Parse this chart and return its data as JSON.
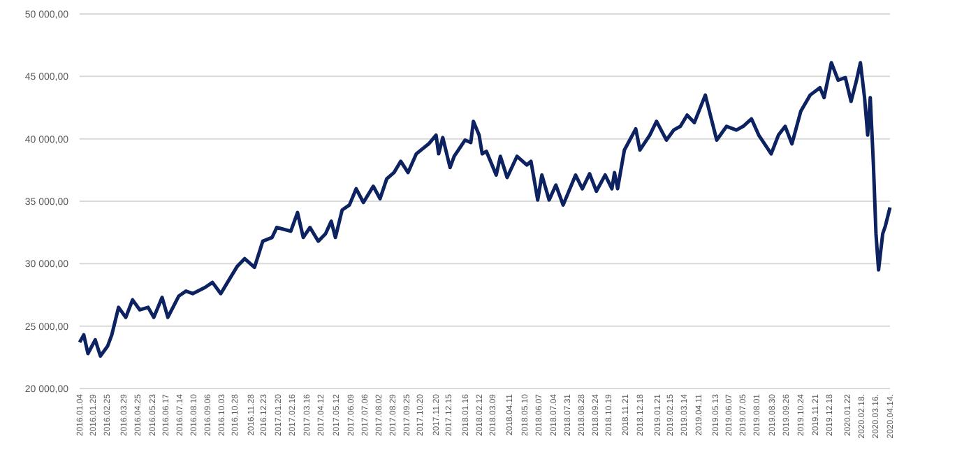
{
  "chart_data": {
    "type": "line",
    "grid": "y",
    "xlim": [
      "2016-01-04",
      "2020-04-14"
    ],
    "ylim": [
      20000,
      50000
    ],
    "yticks": [
      {
        "value": 20000,
        "label": "20 000,00"
      },
      {
        "value": 25000,
        "label": "25 000,00"
      },
      {
        "value": 30000,
        "label": "30 000,00"
      },
      {
        "value": 35000,
        "label": "35 000,00"
      },
      {
        "value": 40000,
        "label": "40 000,00"
      },
      {
        "value": 45000,
        "label": "45 000,00"
      },
      {
        "value": 50000,
        "label": "50 000,00"
      }
    ],
    "xticks": [
      {
        "value": "2016-01-04",
        "label": "2016.01.04"
      },
      {
        "value": "2016-01-29",
        "label": "2016.01.29"
      },
      {
        "value": "2016-02-25",
        "label": "2016.02.25"
      },
      {
        "value": "2016-03-29",
        "label": "2016.03.29"
      },
      {
        "value": "2016-04-25",
        "label": "2016.04.25"
      },
      {
        "value": "2016-05-23",
        "label": "2016.05.23"
      },
      {
        "value": "2016-06-17",
        "label": "2016.06.17"
      },
      {
        "value": "2016-07-14",
        "label": "2016.07.14"
      },
      {
        "value": "2016-08-10",
        "label": "2016.08.10"
      },
      {
        "value": "2016-09-06",
        "label": "2016.09.06"
      },
      {
        "value": "2016-10-03",
        "label": "2016.10.03"
      },
      {
        "value": "2016-10-28",
        "label": "2016.10.28"
      },
      {
        "value": "2016-11-28",
        "label": "2016.11.28"
      },
      {
        "value": "2016-12-23",
        "label": "2016.12.23"
      },
      {
        "value": "2017-01-20",
        "label": "2017.01.20"
      },
      {
        "value": "2017-02-16",
        "label": "2017.02.16"
      },
      {
        "value": "2017-03-16",
        "label": "2017.03.16"
      },
      {
        "value": "2017-04-12",
        "label": "2017.04.12"
      },
      {
        "value": "2017-05-12",
        "label": "2017.05.12"
      },
      {
        "value": "2017-06-09",
        "label": "2017.06.09"
      },
      {
        "value": "2017-07-06",
        "label": "2017.07.06"
      },
      {
        "value": "2017-08-02",
        "label": "2017.08.02"
      },
      {
        "value": "2017-08-29",
        "label": "2017.08.29"
      },
      {
        "value": "2017-09-25",
        "label": "2017.09.25"
      },
      {
        "value": "2017-10-20",
        "label": "2017.10.20"
      },
      {
        "value": "2017-11-20",
        "label": "2017.11.20"
      },
      {
        "value": "2017-12-15",
        "label": "2017.12.15"
      },
      {
        "value": "2018-01-16",
        "label": "2018.01.16"
      },
      {
        "value": "2018-02-12",
        "label": "2018.02.12"
      },
      {
        "value": "2018-03-09",
        "label": "2018.03.09"
      },
      {
        "value": "2018-04-11",
        "label": "2018.04.11"
      },
      {
        "value": "2018-05-10",
        "label": "2018.05.10"
      },
      {
        "value": "2018-06-07",
        "label": "2018.06.07"
      },
      {
        "value": "2018-07-04",
        "label": "2018.07.04"
      },
      {
        "value": "2018-07-31",
        "label": "2018.07.31"
      },
      {
        "value": "2018-08-28",
        "label": "2018.08.28"
      },
      {
        "value": "2018-09-24",
        "label": "2018.09.24"
      },
      {
        "value": "2018-10-19",
        "label": "2018.10.19"
      },
      {
        "value": "2018-11-21",
        "label": "2018.11.21"
      },
      {
        "value": "2018-12-18",
        "label": "2018.12.18"
      },
      {
        "value": "2019-01-21",
        "label": "2019.01.21"
      },
      {
        "value": "2019-02-15",
        "label": "2019.02.15"
      },
      {
        "value": "2019-03-14",
        "label": "2019.03.14"
      },
      {
        "value": "2019-04-11",
        "label": "2019.04.11"
      },
      {
        "value": "2019-05-13",
        "label": "2019.05.13"
      },
      {
        "value": "2019-06-07",
        "label": "2019.06.07"
      },
      {
        "value": "2019-07-05",
        "label": "2019.07.05"
      },
      {
        "value": "2019-08-01",
        "label": "2019.08.01"
      },
      {
        "value": "2019-08-30",
        "label": "2019.08.30"
      },
      {
        "value": "2019-09-26",
        "label": "2019.09.26"
      },
      {
        "value": "2019-10-24",
        "label": "2019.10.24"
      },
      {
        "value": "2019-11-21",
        "label": "2019.11.21"
      },
      {
        "value": "2019-12-18",
        "label": "2019.12.18"
      },
      {
        "value": "2020-01-22",
        "label": "2020.01.22"
      },
      {
        "value": "2020-02-18",
        "label": "2020.02.18."
      },
      {
        "value": "2020-03-16",
        "label": "2020.03.16."
      },
      {
        "value": "2020-04-14",
        "label": "2020.04.14."
      }
    ],
    "x": [
      "2016-01-04",
      "2016-01-12",
      "2016-01-20",
      "2016-02-03",
      "2016-02-13",
      "2016-02-27",
      "2016-03-06",
      "2016-03-19",
      "2016-04-02",
      "2016-04-15",
      "2016-04-29",
      "2016-05-15",
      "2016-05-26",
      "2016-06-11",
      "2016-06-22",
      "2016-07-13",
      "2016-07-27",
      "2016-08-09",
      "2016-09-02",
      "2016-09-16",
      "2016-10-02",
      "2016-10-15",
      "2016-11-03",
      "2016-11-17",
      "2016-12-06",
      "2016-12-22",
      "2017-01-09",
      "2017-01-18",
      "2017-02-14",
      "2017-02-27",
      "2017-03-10",
      "2017-03-23",
      "2017-04-08",
      "2017-04-22",
      "2017-05-03",
      "2017-05-11",
      "2017-05-24",
      "2017-06-07",
      "2017-06-20",
      "2017-07-04",
      "2017-07-23",
      "2017-08-05",
      "2017-08-18",
      "2017-09-01",
      "2017-09-14",
      "2017-09-28",
      "2017-10-14",
      "2017-11-07",
      "2017-11-21",
      "2017-11-26",
      "2017-12-04",
      "2017-12-18",
      "2017-12-26",
      "2018-01-16",
      "2018-01-27",
      "2018-02-01",
      "2018-02-12",
      "2018-02-18",
      "2018-02-26",
      "2018-03-17",
      "2018-03-25",
      "2018-04-07",
      "2018-04-26",
      "2018-05-15",
      "2018-05-23",
      "2018-06-05",
      "2018-06-13",
      "2018-06-27",
      "2018-07-10",
      "2018-07-24",
      "2018-08-17",
      "2018-08-30",
      "2018-09-13",
      "2018-09-26",
      "2018-10-13",
      "2018-10-26",
      "2018-10-31",
      "2018-11-06",
      "2018-11-19",
      "2018-12-11",
      "2018-12-19",
      "2019-01-07",
      "2019-01-20",
      "2019-02-08",
      "2019-02-22",
      "2019-03-07",
      "2019-03-20",
      "2019-04-03",
      "2019-04-24",
      "2019-05-16",
      "2019-06-04",
      "2019-06-23",
      "2019-07-06",
      "2019-07-22",
      "2019-08-05",
      "2019-08-29",
      "2019-09-12",
      "2019-09-25",
      "2019-10-08",
      "2019-10-25",
      "2019-11-12",
      "2019-12-01",
      "2019-12-09",
      "2019-12-23",
      "2020-01-05",
      "2020-01-19",
      "2020-01-30",
      "2020-02-09",
      "2020-02-17",
      "2020-02-25",
      "2020-03-02",
      "2020-03-07",
      "2020-03-13",
      "2020-03-18",
      "2020-03-23",
      "2020-03-31",
      "2020-04-05",
      "2020-04-14"
    ],
    "series": [
      {
        "color": "#0d2260",
        "values": [
          23700,
          24300,
          22800,
          23900,
          22600,
          23400,
          24300,
          26500,
          25700,
          27100,
          26300,
          26500,
          25700,
          27300,
          25700,
          27400,
          27800,
          27600,
          28100,
          28500,
          27600,
          28500,
          29800,
          30400,
          29700,
          31800,
          32100,
          32900,
          32600,
          34100,
          32100,
          32900,
          31800,
          32400,
          33400,
          32100,
          34300,
          34700,
          36000,
          34900,
          36200,
          35200,
          36800,
          37300,
          38200,
          37300,
          38800,
          39600,
          40300,
          38800,
          40100,
          37700,
          38600,
          39900,
          39700,
          41400,
          40300,
          38800,
          39000,
          37100,
          38600,
          36900,
          38600,
          37900,
          38200,
          35100,
          37100,
          35100,
          36300,
          34700,
          37100,
          36000,
          37200,
          35800,
          37100,
          36000,
          37300,
          36000,
          39100,
          40800,
          39100,
          40300,
          41400,
          39900,
          40700,
          41000,
          41900,
          41300,
          43500,
          39900,
          41000,
          40700,
          41000,
          41600,
          40300,
          38800,
          40300,
          41000,
          39600,
          42200,
          43500,
          44100,
          43300,
          46100,
          44700,
          44900,
          43000,
          44600,
          46100,
          43300,
          40300,
          43300,
          38000,
          32400,
          29500,
          32400,
          33000,
          34500
        ]
      }
    ]
  }
}
